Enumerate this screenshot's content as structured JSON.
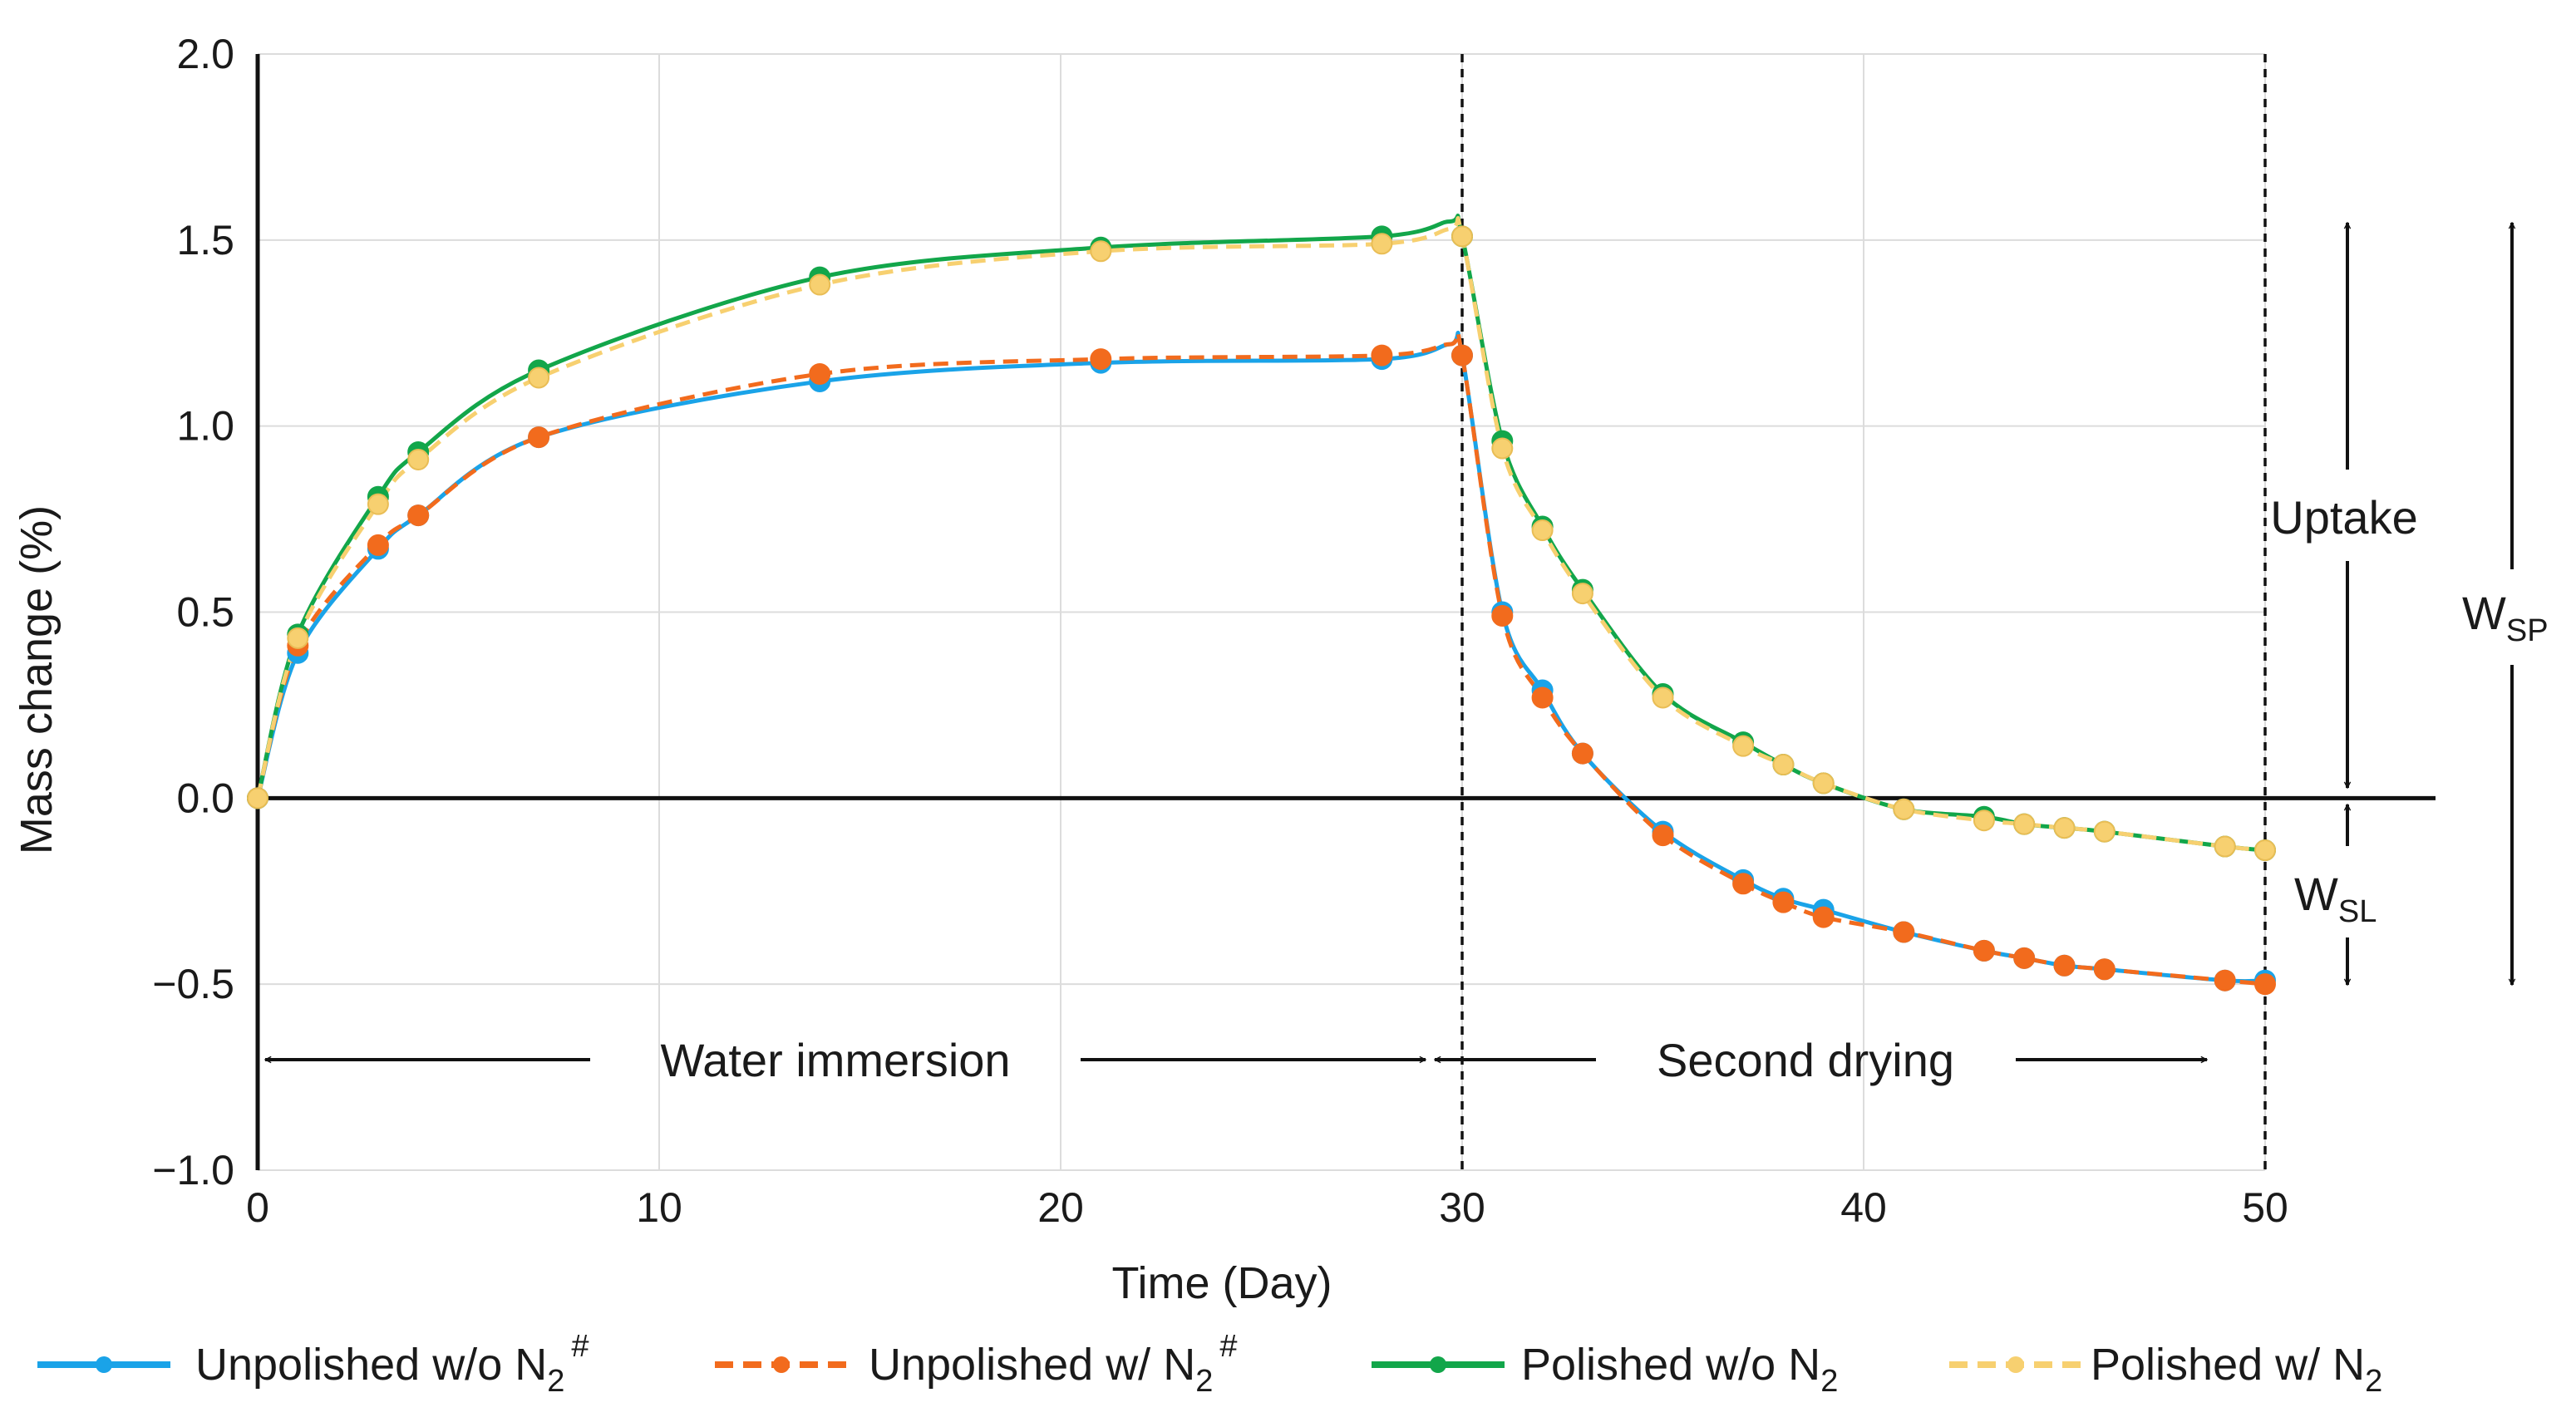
{
  "chart_data": {
    "type": "line",
    "xlabel": "Time (Day)",
    "ylabel": "Mass change (%)",
    "xlim": [
      0,
      50
    ],
    "ylim": [
      -1.0,
      2.0
    ],
    "xticks": [
      "0",
      "10",
      "20",
      "30",
      "40",
      "50"
    ],
    "yticks": [
      "2.0",
      "1.5",
      "1.0",
      "0.5",
      "0.0",
      "−0.5",
      "−1.0"
    ],
    "grid": true,
    "legend_position": "bottom",
    "series": [
      {
        "name": "Unpolished w/o N",
        "sub": "2",
        "sup": "#",
        "color": "#1aa3e8",
        "dashed": false,
        "points": [
          [
            0,
            0
          ],
          [
            1,
            0.39
          ],
          [
            3,
            0.67
          ],
          [
            4,
            0.76
          ],
          [
            7,
            0.97
          ],
          [
            14,
            1.12
          ],
          [
            21,
            1.17
          ],
          [
            28,
            1.18
          ],
          [
            29.7,
            1.22
          ],
          [
            30,
            1.19
          ],
          [
            31,
            0.5
          ],
          [
            32,
            0.29
          ],
          [
            33,
            0.12
          ],
          [
            35,
            -0.09
          ],
          [
            37,
            -0.22
          ],
          [
            38,
            -0.27
          ],
          [
            39,
            -0.3
          ],
          [
            41,
            -0.36
          ],
          [
            43,
            -0.41
          ],
          [
            44,
            -0.43
          ],
          [
            45,
            -0.45
          ],
          [
            46,
            -0.46
          ],
          [
            49,
            -0.49
          ],
          [
            50,
            -0.49
          ]
        ]
      },
      {
        "name": "Unpolished w/ N",
        "sub": "2",
        "sup": "#",
        "color": "#f26b1d",
        "dashed": true,
        "points": [
          [
            0,
            0
          ],
          [
            1,
            0.41
          ],
          [
            3,
            0.68
          ],
          [
            4,
            0.76
          ],
          [
            7,
            0.97
          ],
          [
            14,
            1.14
          ],
          [
            21,
            1.18
          ],
          [
            28,
            1.19
          ],
          [
            29.7,
            1.22
          ],
          [
            30,
            1.19
          ],
          [
            31,
            0.49
          ],
          [
            32,
            0.27
          ],
          [
            33,
            0.12
          ],
          [
            35,
            -0.1
          ],
          [
            37,
            -0.23
          ],
          [
            38,
            -0.28
          ],
          [
            39,
            -0.32
          ],
          [
            41,
            -0.36
          ],
          [
            43,
            -0.41
          ],
          [
            44,
            -0.43
          ],
          [
            45,
            -0.45
          ],
          [
            46,
            -0.46
          ],
          [
            49,
            -0.49
          ],
          [
            50,
            -0.5
          ]
        ]
      },
      {
        "name": "Polished w/o N",
        "sub": "2",
        "sup": "",
        "color": "#12a64a",
        "dashed": false,
        "points": [
          [
            0,
            0
          ],
          [
            1,
            0.44
          ],
          [
            3,
            0.81
          ],
          [
            4,
            0.93
          ],
          [
            7,
            1.15
          ],
          [
            14,
            1.4
          ],
          [
            21,
            1.48
          ],
          [
            28,
            1.51
          ],
          [
            29.7,
            1.55
          ],
          [
            30,
            1.51
          ],
          [
            31,
            0.96
          ],
          [
            32,
            0.73
          ],
          [
            33,
            0.56
          ],
          [
            35,
            0.28
          ],
          [
            37,
            0.15
          ],
          [
            38,
            0.09
          ],
          [
            39,
            0.04
          ],
          [
            41,
            -0.03
          ],
          [
            43,
            -0.05
          ],
          [
            44,
            -0.07
          ],
          [
            45,
            -0.08
          ],
          [
            46,
            -0.09
          ],
          [
            49,
            -0.13
          ],
          [
            50,
            -0.14
          ]
        ]
      },
      {
        "name": "Polished w/ N",
        "sub": "2",
        "sup": "",
        "color": "#f7d070",
        "dashed": true,
        "points": [
          [
            0,
            0
          ],
          [
            1,
            0.43
          ],
          [
            3,
            0.79
          ],
          [
            4,
            0.91
          ],
          [
            7,
            1.13
          ],
          [
            14,
            1.38
          ],
          [
            21,
            1.47
          ],
          [
            28,
            1.49
          ],
          [
            29.7,
            1.53
          ],
          [
            30,
            1.51
          ],
          [
            31,
            0.94
          ],
          [
            32,
            0.72
          ],
          [
            33,
            0.55
          ],
          [
            35,
            0.27
          ],
          [
            37,
            0.14
          ],
          [
            38,
            0.09
          ],
          [
            39,
            0.04
          ],
          [
            41,
            -0.03
          ],
          [
            43,
            -0.06
          ],
          [
            44,
            -0.07
          ],
          [
            45,
            -0.08
          ],
          [
            46,
            -0.09
          ],
          [
            49,
            -0.13
          ],
          [
            50,
            -0.14
          ]
        ]
      }
    ],
    "annotations": {
      "water_immersion": "Water immersion",
      "second_drying": "Second drying",
      "uptake": "Uptake",
      "wsp_main": "W",
      "wsp_sub": "SP",
      "wsl_main": "W",
      "wsl_sub": "SL"
    },
    "phase_markers_x": [
      30,
      50
    ]
  }
}
